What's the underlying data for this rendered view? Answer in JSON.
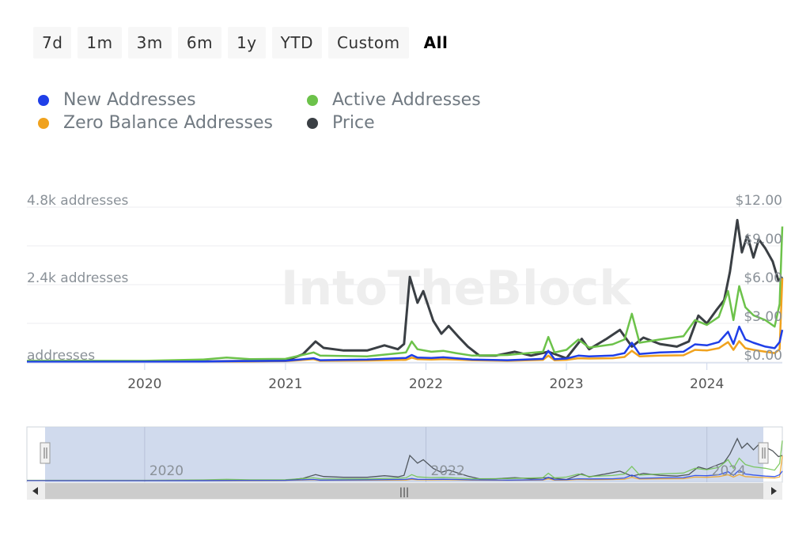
{
  "range_buttons": [
    "7d",
    "1m",
    "3m",
    "6m",
    "1y",
    "YTD",
    "Custom",
    "All"
  ],
  "active_range": "All",
  "watermark_text": "IntoTheBlock",
  "navigator": {
    "year_labels": [
      "2020",
      "2022",
      "2024"
    ],
    "handle_grip": "|||",
    "scroll_left_icon": "scroll-left-arrow",
    "scroll_right_icon": "scroll-right-arrow"
  },
  "chart_data": {
    "type": "line",
    "x_axis": {
      "type": "date",
      "range": [
        "2019-03-01",
        "2024-07-15"
      ],
      "tick_labels": [
        "2020",
        "2021",
        "2022",
        "2023",
        "2024"
      ]
    },
    "y_axis_left": {
      "unit": "addresses",
      "range": [
        0,
        4800
      ],
      "tick_labels": [
        "addresses",
        "2.4k addresses",
        "4.8k addresses"
      ]
    },
    "y_axis_right": {
      "unit": "USD",
      "range": [
        0,
        12
      ],
      "tick_labels": [
        "$0.00",
        "$3.00",
        "$6.00",
        "$9.00",
        "$12.00"
      ]
    },
    "legend_placement": "top-left",
    "grid": true,
    "series": [
      {
        "name": "New Addresses",
        "color": "#1f3fe8",
        "axis": "left",
        "points": [
          [
            "2019-03-01",
            10
          ],
          [
            "2020-01-01",
            12
          ],
          [
            "2020-06-01",
            20
          ],
          [
            "2020-09-01",
            30
          ],
          [
            "2021-01-01",
            40
          ],
          [
            "2021-03-15",
            120
          ],
          [
            "2021-04-01",
            60
          ],
          [
            "2021-08-01",
            80
          ],
          [
            "2021-11-10",
            130
          ],
          [
            "2021-11-25",
            220
          ],
          [
            "2021-12-10",
            140
          ],
          [
            "2022-01-15",
            130
          ],
          [
            "2022-02-15",
            150
          ],
          [
            "2022-03-20",
            120
          ],
          [
            "2022-05-01",
            80
          ],
          [
            "2022-08-01",
            60
          ],
          [
            "2022-11-01",
            100
          ],
          [
            "2022-11-15",
            350
          ],
          [
            "2022-12-01",
            90
          ],
          [
            "2023-01-01",
            110
          ],
          [
            "2023-02-01",
            200
          ],
          [
            "2023-03-01",
            180
          ],
          [
            "2023-05-01",
            200
          ],
          [
            "2023-06-01",
            280
          ],
          [
            "2023-06-20",
            600
          ],
          [
            "2023-07-10",
            250
          ],
          [
            "2023-09-01",
            300
          ],
          [
            "2023-11-01",
            320
          ],
          [
            "2023-12-01",
            550
          ],
          [
            "2024-01-01",
            520
          ],
          [
            "2024-02-01",
            620
          ],
          [
            "2024-02-25",
            940
          ],
          [
            "2024-03-10",
            560
          ],
          [
            "2024-03-25",
            1100
          ],
          [
            "2024-04-10",
            700
          ],
          [
            "2024-05-01",
            600
          ],
          [
            "2024-06-01",
            480
          ],
          [
            "2024-06-25",
            430
          ],
          [
            "2024-07-08",
            620
          ],
          [
            "2024-07-15",
            1000
          ]
        ]
      },
      {
        "name": "Active Addresses",
        "color": "#6cc24a",
        "axis": "left",
        "points": [
          [
            "2019-03-01",
            40
          ],
          [
            "2020-01-01",
            40
          ],
          [
            "2020-06-01",
            80
          ],
          [
            "2020-08-01",
            140
          ],
          [
            "2020-10-01",
            90
          ],
          [
            "2021-01-01",
            100
          ],
          [
            "2021-03-15",
            300
          ],
          [
            "2021-04-01",
            200
          ],
          [
            "2021-08-01",
            180
          ],
          [
            "2021-11-10",
            300
          ],
          [
            "2021-11-25",
            640
          ],
          [
            "2021-12-10",
            400
          ],
          [
            "2022-01-15",
            320
          ],
          [
            "2022-02-15",
            350
          ],
          [
            "2022-03-20",
            280
          ],
          [
            "2022-05-01",
            200
          ],
          [
            "2022-08-01",
            220
          ],
          [
            "2022-11-01",
            320
          ],
          [
            "2022-11-15",
            780
          ],
          [
            "2022-12-01",
            300
          ],
          [
            "2023-01-01",
            380
          ],
          [
            "2023-02-01",
            700
          ],
          [
            "2023-03-01",
            450
          ],
          [
            "2023-05-01",
            550
          ],
          [
            "2023-06-01",
            700
          ],
          [
            "2023-06-20",
            1500
          ],
          [
            "2023-07-10",
            600
          ],
          [
            "2023-09-01",
            700
          ],
          [
            "2023-11-01",
            800
          ],
          [
            "2023-12-01",
            1300
          ],
          [
            "2024-01-01",
            1150
          ],
          [
            "2024-02-01",
            1400
          ],
          [
            "2024-02-25",
            2200
          ],
          [
            "2024-03-10",
            1300
          ],
          [
            "2024-03-25",
            2350
          ],
          [
            "2024-04-10",
            1700
          ],
          [
            "2024-05-01",
            1450
          ],
          [
            "2024-06-01",
            1300
          ],
          [
            "2024-06-25",
            1100
          ],
          [
            "2024-07-08",
            1800
          ],
          [
            "2024-07-15",
            4200
          ]
        ]
      },
      {
        "name": "Zero Balance Addresses",
        "color": "#f0a21e",
        "axis": "left",
        "points": [
          [
            "2019-03-01",
            8
          ],
          [
            "2020-01-01",
            8
          ],
          [
            "2020-06-01",
            15
          ],
          [
            "2020-09-01",
            20
          ],
          [
            "2021-01-01",
            30
          ],
          [
            "2021-03-15",
            90
          ],
          [
            "2021-04-01",
            40
          ],
          [
            "2021-08-01",
            50
          ],
          [
            "2021-11-10",
            70
          ],
          [
            "2021-11-25",
            140
          ],
          [
            "2021-12-10",
            90
          ],
          [
            "2022-01-15",
            80
          ],
          [
            "2022-02-15",
            90
          ],
          [
            "2022-03-20",
            80
          ],
          [
            "2022-05-01",
            60
          ],
          [
            "2022-08-01",
            40
          ],
          [
            "2022-11-01",
            70
          ],
          [
            "2022-11-15",
            200
          ],
          [
            "2022-12-01",
            60
          ],
          [
            "2023-01-01",
            70
          ],
          [
            "2023-02-01",
            120
          ],
          [
            "2023-03-01",
            110
          ],
          [
            "2023-05-01",
            120
          ],
          [
            "2023-06-01",
            160
          ],
          [
            "2023-06-20",
            350
          ],
          [
            "2023-07-10",
            180
          ],
          [
            "2023-09-01",
            200
          ],
          [
            "2023-11-01",
            210
          ],
          [
            "2023-12-01",
            380
          ],
          [
            "2024-01-01",
            360
          ],
          [
            "2024-02-01",
            430
          ],
          [
            "2024-02-25",
            620
          ],
          [
            "2024-03-10",
            380
          ],
          [
            "2024-03-25",
            650
          ],
          [
            "2024-04-10",
            430
          ],
          [
            "2024-05-01",
            380
          ],
          [
            "2024-06-01",
            320
          ],
          [
            "2024-06-25",
            280
          ],
          [
            "2024-07-08",
            400
          ],
          [
            "2024-07-15",
            2600
          ]
        ]
      },
      {
        "name": "Price",
        "color": "#3a3f44",
        "axis": "right",
        "points": [
          [
            "2019-03-01",
            0.03
          ],
          [
            "2020-01-01",
            0.03
          ],
          [
            "2020-06-01",
            0.05
          ],
          [
            "2020-09-01",
            0.08
          ],
          [
            "2021-01-01",
            0.1
          ],
          [
            "2021-02-15",
            0.6
          ],
          [
            "2021-03-20",
            1.6
          ],
          [
            "2021-04-10",
            1.1
          ],
          [
            "2021-06-01",
            0.9
          ],
          [
            "2021-08-01",
            0.9
          ],
          [
            "2021-09-15",
            1.3
          ],
          [
            "2021-10-20",
            1.0
          ],
          [
            "2021-11-05",
            1.4
          ],
          [
            "2021-11-20",
            6.6
          ],
          [
            "2021-12-10",
            4.6
          ],
          [
            "2021-12-25",
            5.5
          ],
          [
            "2022-01-20",
            3.2
          ],
          [
            "2022-02-10",
            2.2
          ],
          [
            "2022-03-01",
            2.8
          ],
          [
            "2022-03-25",
            2.0
          ],
          [
            "2022-04-20",
            1.2
          ],
          [
            "2022-05-20",
            0.5
          ],
          [
            "2022-07-01",
            0.5
          ],
          [
            "2022-08-20",
            0.8
          ],
          [
            "2022-10-01",
            0.5
          ],
          [
            "2022-11-15",
            0.8
          ],
          [
            "2023-01-01",
            0.3
          ],
          [
            "2023-02-10",
            1.8
          ],
          [
            "2023-03-01",
            1.0
          ],
          [
            "2023-04-15",
            1.8
          ],
          [
            "2023-05-20",
            2.5
          ],
          [
            "2023-06-20",
            1.2
          ],
          [
            "2023-07-20",
            1.9
          ],
          [
            "2023-09-01",
            1.4
          ],
          [
            "2023-10-15",
            1.2
          ],
          [
            "2023-11-15",
            1.6
          ],
          [
            "2023-12-10",
            3.6
          ],
          [
            "2024-01-01",
            3.0
          ],
          [
            "2024-01-25",
            4.0
          ],
          [
            "2024-02-15",
            4.8
          ],
          [
            "2024-03-01",
            7.0
          ],
          [
            "2024-03-20",
            11.0
          ],
          [
            "2024-04-01",
            8.5
          ],
          [
            "2024-04-15",
            9.8
          ],
          [
            "2024-05-01",
            8.1
          ],
          [
            "2024-05-15",
            9.5
          ],
          [
            "2024-06-01",
            8.8
          ],
          [
            "2024-06-20",
            7.8
          ],
          [
            "2024-07-05",
            6.3
          ],
          [
            "2024-07-15",
            6.6
          ]
        ]
      }
    ]
  }
}
